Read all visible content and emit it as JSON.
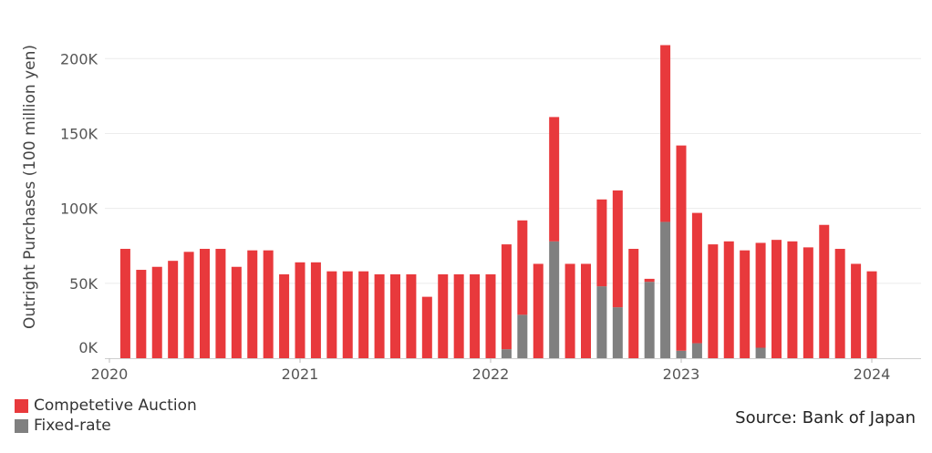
{
  "chart_data": {
    "type": "bar",
    "stacked": true,
    "ylabel": "Outright Purchases (100 million yen)",
    "ylim": [
      0,
      230000
    ],
    "yticks": [
      0,
      50000,
      100000,
      150000,
      200000
    ],
    "ytick_labels": [
      "0K",
      "50K",
      "100K",
      "150K",
      "200K"
    ],
    "x_range": [
      2020.0,
      2024.25
    ],
    "xticks": [
      2020,
      2021,
      2022,
      2023,
      2024
    ],
    "xtick_labels": [
      "2020",
      "2021",
      "2022",
      "2023",
      "2024"
    ],
    "grid": true,
    "legend_position": "bottom-left",
    "x": [
      "2020-02",
      "2020-03",
      "2020-04",
      "2020-05",
      "2020-06",
      "2020-07",
      "2020-08",
      "2020-09",
      "2020-10",
      "2020-11",
      "2020-12",
      "2021-01",
      "2021-02",
      "2021-03",
      "2021-04",
      "2021-05",
      "2021-06",
      "2021-07",
      "2021-08",
      "2021-09",
      "2021-10",
      "2021-11",
      "2021-12",
      "2022-01",
      "2022-02",
      "2022-03",
      "2022-04",
      "2022-05",
      "2022-06",
      "2022-07",
      "2022-08",
      "2022-09",
      "2022-10",
      "2022-11",
      "2022-12",
      "2023-01",
      "2023-02",
      "2023-03",
      "2023-04",
      "2023-05",
      "2023-06",
      "2023-07",
      "2023-08",
      "2023-09",
      "2023-10",
      "2023-11",
      "2023-12",
      "2024-01"
    ],
    "series": [
      {
        "name": "Competetive Auction",
        "color": "#e8393c",
        "values": [
          73000,
          59000,
          61000,
          65000,
          71000,
          73000,
          73000,
          61000,
          72000,
          72000,
          56000,
          64000,
          64000,
          58000,
          58000,
          58000,
          56000,
          56000,
          56000,
          41000,
          56000,
          56000,
          56000,
          56000,
          70000,
          63000,
          63000,
          83000,
          63000,
          63000,
          58000,
          78000,
          73000,
          2000,
          118000,
          137000,
          87000,
          76000,
          78000,
          72000,
          70000,
          79000,
          78000,
          74000,
          89000,
          73000,
          63000,
          58000
        ]
      },
      {
        "name": "Fixed-rate",
        "color": "#808080",
        "values": [
          0,
          0,
          0,
          0,
          0,
          0,
          0,
          0,
          0,
          0,
          0,
          0,
          0,
          0,
          0,
          0,
          0,
          0,
          0,
          0,
          0,
          0,
          0,
          0,
          6000,
          29000,
          0,
          78000,
          0,
          0,
          48000,
          34000,
          0,
          51000,
          91000,
          5000,
          10000,
          0,
          0,
          0,
          7000,
          0,
          0,
          0,
          0,
          0,
          0,
          0
        ]
      }
    ]
  },
  "legend": {
    "items": [
      {
        "label": "Competetive Auction",
        "color": "#e8393c"
      },
      {
        "label": "Fixed-rate",
        "color": "#808080"
      }
    ]
  },
  "source_text": "Source: Bank of Japan"
}
